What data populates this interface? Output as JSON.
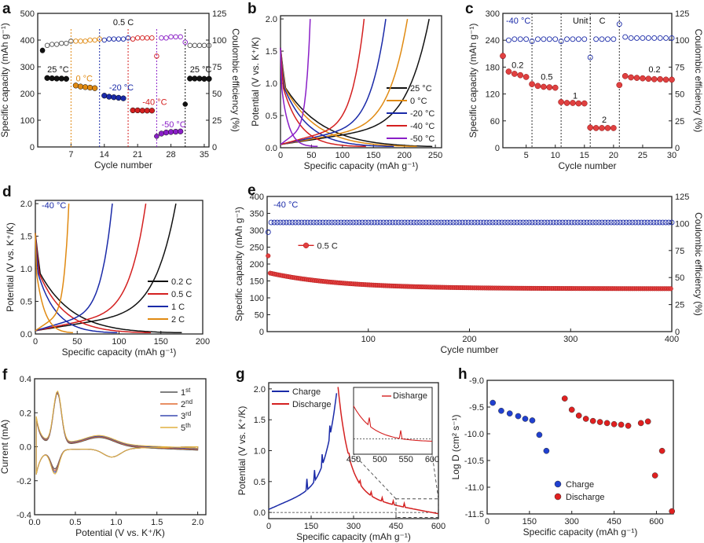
{
  "chart_data": [
    {
      "panel": "a",
      "type": "scatter",
      "xlabel": "Cycle number",
      "ylabel": "Specific capacity (mAh g⁻¹)",
      "y2label": "Coulombic efficiency (%)",
      "xlim": [
        0,
        36
      ],
      "ylim": [
        0,
        500
      ],
      "y2lim": [
        0,
        125
      ],
      "xticks": [
        7,
        14,
        21,
        28,
        35
      ],
      "yticks": [
        0,
        100,
        200,
        300,
        400,
        500
      ],
      "y2ticks": [
        0,
        25,
        50,
        75,
        100,
        125
      ],
      "top_label": "0.5 C",
      "dividers": [
        7,
        13,
        19,
        25,
        31
      ],
      "segments": [
        {
          "label": "25 °C",
          "color": "#111111",
          "x": [
            2,
            3,
            4,
            5,
            6
          ],
          "y": [
            258,
            257,
            256,
            256,
            255
          ],
          "first": [
            1,
            362
          ]
        },
        {
          "label": "0 °C",
          "color": "#e08a12",
          "x": [
            8,
            9,
            10,
            11,
            12
          ],
          "y": [
            230,
            226,
            224,
            222,
            220
          ]
        },
        {
          "label": "-20 °C",
          "color": "#1a2aa8",
          "x": [
            14,
            15,
            16,
            17,
            18
          ],
          "y": [
            192,
            188,
            186,
            184,
            182
          ]
        },
        {
          "label": "-40 °C",
          "color": "#d42020",
          "x": [
            20,
            21,
            22,
            23,
            24
          ],
          "y": [
            137,
            137,
            136,
            136,
            136
          ]
        },
        {
          "label": "-50 °C",
          "color": "#8a1fc7",
          "x": [
            26,
            27,
            28,
            29,
            30
          ],
          "y": [
            50,
            54,
            56,
            57,
            58
          ],
          "first": [
            25,
            40
          ]
        },
        {
          "label": "25 °C",
          "color": "#111111",
          "x": [
            32,
            33,
            34,
            35,
            36
          ],
          "y": [
            256,
            256,
            256,
            255,
            255
          ],
          "first": [
            31,
            160
          ]
        }
      ],
      "ce": {
        "x": [
          1,
          2,
          3,
          4,
          5,
          6,
          7,
          8,
          9,
          10,
          11,
          12,
          13,
          14,
          15,
          16,
          17,
          18,
          19,
          20,
          21,
          22,
          23,
          24,
          25,
          26,
          27,
          28,
          29,
          30,
          31,
          32,
          33,
          34,
          35,
          36
        ],
        "y": [
          90,
          95,
          96,
          96,
          97,
          97,
          99,
          99,
          99,
          99,
          100,
          100,
          101,
          100,
          101,
          101,
          101,
          101,
          102,
          101,
          102,
          102,
          102,
          102,
          85,
          102,
          102,
          103,
          103,
          103,
          98,
          95,
          95,
          95,
          95,
          95
        ]
      }
    },
    {
      "panel": "b",
      "type": "line",
      "xlabel": "Specific capacity (mAh g⁻¹)",
      "ylabel": "Potential (V vs. K⁺/K)",
      "xlim": [
        0,
        260
      ],
      "ylim": [
        0,
        2.05
      ],
      "xticks": [
        0,
        50,
        100,
        150,
        200,
        250
      ],
      "yticks": [
        0.0,
        0.5,
        1.0,
        1.5,
        2.0
      ],
      "series": [
        {
          "name": "25 °C",
          "color": "#111111",
          "cap": 245,
          "chg": 240
        },
        {
          "name": "0 °C",
          "color": "#e08a12",
          "cap": 220,
          "chg": 205
        },
        {
          "name": "-20 °C",
          "color": "#1a2aa8",
          "cap": 183,
          "chg": 170
        },
        {
          "name": "-40 °C",
          "color": "#d42020",
          "cap": 138,
          "chg": 135
        },
        {
          "name": "-50 °C",
          "color": "#8a1fc7",
          "cap": 60,
          "chg": 48
        }
      ]
    },
    {
      "panel": "c",
      "type": "scatter",
      "xlabel": "Cycle number",
      "ylabel": "Specific capacity (mAh g⁻¹)",
      "y2label": "Coulombic efficiency (%)",
      "xlim": [
        1,
        30
      ],
      "ylim": [
        0,
        300
      ],
      "y2lim": [
        0,
        125
      ],
      "xticks": [
        5,
        10,
        15,
        20,
        25,
        30
      ],
      "yticks": [
        0,
        60,
        120,
        180,
        240,
        300
      ],
      "y2ticks": [
        0,
        25,
        50,
        75,
        100,
        125
      ],
      "temp_label": "-40 °C",
      "unit_label": "Unit： C",
      "dividers": [
        6,
        11,
        16,
        21
      ],
      "rates": [
        {
          "label": "0.2",
          "x": [
            1,
            2,
            3,
            4,
            5
          ],
          "y": [
            205,
            170,
            165,
            162,
            158
          ]
        },
        {
          "label": "0.5",
          "x": [
            6,
            7,
            8,
            9,
            10
          ],
          "y": [
            142,
            138,
            136,
            135,
            134
          ]
        },
        {
          "label": "1",
          "x": [
            11,
            12,
            13,
            14,
            15
          ],
          "y": [
            102,
            100,
            100,
            99,
            99
          ]
        },
        {
          "label": "2",
          "x": [
            16,
            17,
            18,
            19,
            20
          ],
          "y": [
            45,
            44,
            44,
            44,
            44
          ]
        },
        {
          "label": "0.2",
          "x": [
            21,
            22,
            23,
            24,
            25,
            26,
            27,
            28,
            29,
            30
          ],
          "y": [
            140,
            160,
            157,
            156,
            155,
            154,
            153,
            153,
            152,
            152
          ]
        }
      ],
      "ce": {
        "x": [
          1,
          2,
          3,
          4,
          5,
          6,
          7,
          8,
          9,
          10,
          11,
          12,
          13,
          14,
          15,
          16,
          17,
          18,
          19,
          20,
          21,
          22,
          23,
          24,
          25,
          26,
          27,
          28,
          29,
          30
        ],
        "y": [
          85,
          100,
          101,
          101,
          101,
          99,
          101,
          101,
          101,
          101,
          99,
          101,
          101,
          101,
          101,
          84,
          101,
          101,
          101,
          101,
          115,
          103,
          102,
          102,
          102,
          102,
          102,
          102,
          102,
          102
        ]
      }
    },
    {
      "panel": "d",
      "type": "line",
      "xlabel": "Specific capacity (mAh g⁻¹)",
      "ylabel": "Potential (V vs. K⁺/K)",
      "xlim": [
        0,
        200
      ],
      "ylim": [
        0,
        2.05
      ],
      "xticks": [
        0,
        50,
        100,
        150,
        200
      ],
      "yticks": [
        0.0,
        0.5,
        1.0,
        1.5,
        2.0
      ],
      "temp_label": "-40 °C",
      "series": [
        {
          "name": "0.2 C",
          "color": "#111111",
          "cap": 175,
          "chg": 168
        },
        {
          "name": "0.5 C",
          "color": "#d42020",
          "cap": 138,
          "chg": 132
        },
        {
          "name": "1 C",
          "color": "#1a2aa8",
          "cap": 98,
          "chg": 92
        },
        {
          "name": "2 C",
          "color": "#e08a12",
          "cap": 45,
          "chg": 40
        }
      ]
    },
    {
      "panel": "e",
      "type": "scatter",
      "xlabel": "Cycle number",
      "ylabel": "Specific capacity (mAh g⁻¹)",
      "y2label": "Coulombic efficiency (%)",
      "xlim": [
        0,
        400
      ],
      "ylim": [
        0,
        400
      ],
      "y2lim": [
        0,
        125
      ],
      "xticks": [
        100,
        200,
        300,
        400
      ],
      "yticks": [
        0,
        50,
        100,
        150,
        200,
        250,
        300,
        350,
        400
      ],
      "y2ticks": [
        0,
        25,
        50,
        75,
        100,
        125
      ],
      "temp_label": "-40 °C",
      "legend": "0.5 C",
      "capacity_start": 175,
      "capacity_end": 127,
      "ce_value": 101
    },
    {
      "panel": "f",
      "type": "line",
      "xlabel": "Potential (V vs. K⁺/K)",
      "ylabel": "Current (mA)",
      "xlim": [
        0.0,
        2.1
      ],
      "ylim": [
        -0.4,
        0.4
      ],
      "xticks": [
        0.0,
        0.5,
        1.0,
        1.5,
        2.0
      ],
      "yticks": [
        -0.4,
        -0.2,
        0.0,
        0.2,
        0.4
      ],
      "series": [
        {
          "name": "1",
          "sup": "st",
          "color": "#555555"
        },
        {
          "name": "2",
          "sup": "nd",
          "color": "#e06a30"
        },
        {
          "name": "3",
          "sup": "rd",
          "color": "#3a4ab0"
        },
        {
          "name": "5",
          "sup": "th",
          "color": "#e0b040"
        }
      ]
    },
    {
      "panel": "g",
      "type": "line",
      "xlabel": "Specific capacity (mAh g⁻¹)",
      "ylabel": "Potential (V vs. K⁺/K)",
      "xlim": [
        0,
        600
      ],
      "ylim": [
        -0.1,
        2.1
      ],
      "xticks": [
        0,
        150,
        300,
        450,
        600
      ],
      "yticks": [
        0.0,
        0.5,
        1.0,
        1.5,
        2.0
      ],
      "series": [
        {
          "name": "Charge",
          "color": "#1a2aa8"
        },
        {
          "name": "Discharge",
          "color": "#d42020"
        }
      ],
      "inset": {
        "legend": "Disharge",
        "xlim": [
          450,
          600
        ],
        "xticks": [
          450,
          500,
          550,
          600
        ]
      }
    },
    {
      "panel": "h",
      "type": "scatter",
      "xlabel": "Specific capacity (mAh g⁻¹)",
      "ylabel": "Log D (cm² s⁻¹)",
      "xlim": [
        0,
        660
      ],
      "ylim": [
        -11.5,
        -9.0
      ],
      "xticks": [
        0,
        150,
        300,
        450,
        600
      ],
      "yticks": [
        -9.0,
        -9.5,
        -10.0,
        -10.5,
        -11.0,
        -11.5
      ],
      "series": [
        {
          "name": "Charge",
          "color": "#2040d0",
          "x": [
            20,
            50,
            80,
            110,
            135,
            160,
            185,
            210
          ],
          "y": [
            -9.42,
            -9.57,
            -9.62,
            -9.67,
            -9.72,
            -9.75,
            -10.02,
            -10.32
          ]
        },
        {
          "name": "Discharge",
          "color": "#e02020",
          "x": [
            275,
            300,
            325,
            350,
            375,
            400,
            425,
            450,
            475,
            500,
            545,
            570,
            595,
            620,
            655
          ],
          "y": [
            -9.34,
            -9.55,
            -9.66,
            -9.72,
            -9.76,
            -9.78,
            -9.8,
            -9.82,
            -9.83,
            -9.85,
            -9.8,
            -9.77,
            -10.78,
            -10.32,
            -11.45
          ]
        }
      ]
    }
  ]
}
